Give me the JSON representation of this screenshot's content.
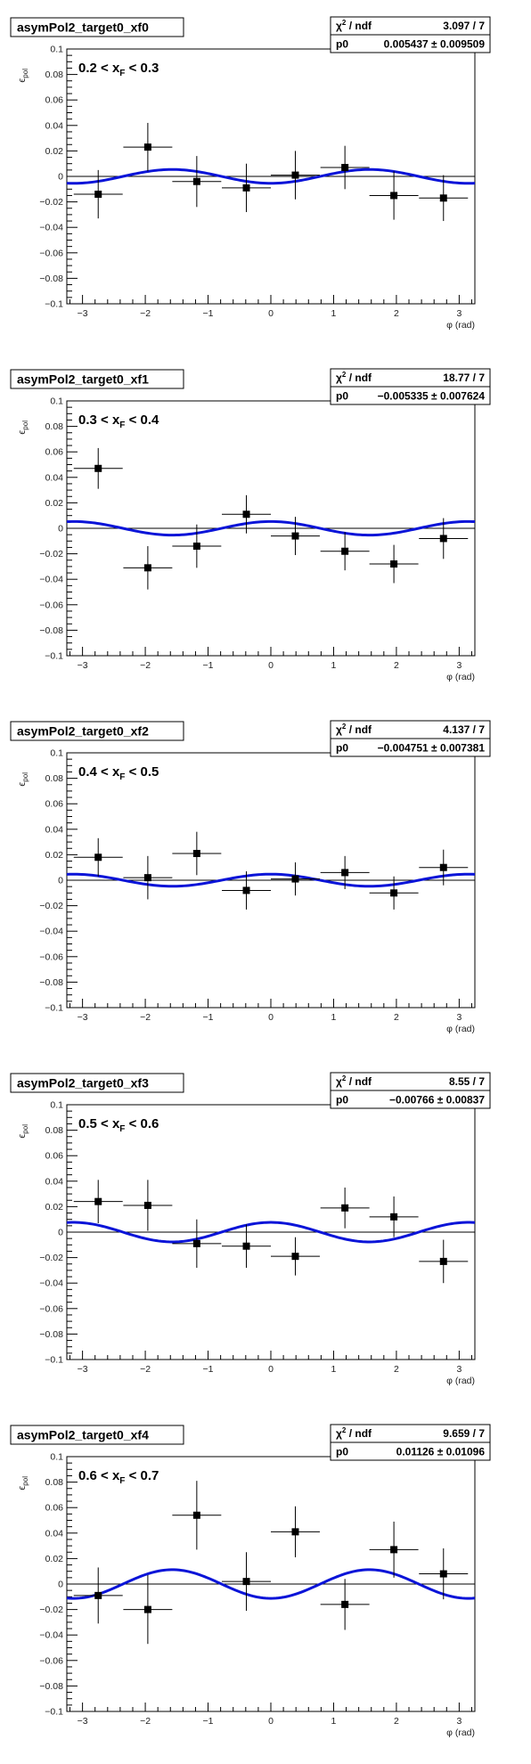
{
  "chart_data": [
    {
      "type": "scatter",
      "title": "asymPol2_target0_xf0",
      "annotation": [
        "0.2 < x",
        "F",
        " < 0.3"
      ],
      "xlabel": "φ (rad)",
      "ylabel": [
        "ϵ",
        "pol"
      ],
      "xlim": [
        -3.25,
        3.25
      ],
      "ylim": [
        -0.1,
        0.1
      ],
      "xticks": [
        "−3",
        "−2",
        "−1",
        "0",
        "1",
        "2",
        "3"
      ],
      "yticks": [
        "−0.1",
        "−0.08",
        "−0.06",
        "−0.04",
        "−0.02",
        "0",
        "0.02",
        "0.04",
        "0.06",
        "0.08",
        "0.1"
      ],
      "stats": {
        "chi2_label": "χ",
        "chi2_sup": "2",
        "ndf_label": " / ndf",
        "chi2_value": "3.097 / 7",
        "p0_label": "p0",
        "p0_value": "0.005437 ± 0.009509"
      },
      "fit": {
        "p0": 0.005437,
        "function": "-p0*cos(2*phi)"
      },
      "points": [
        {
          "x": -2.75,
          "y": -0.014,
          "xerr": 0.39,
          "yerr": 0.019
        },
        {
          "x": -1.96,
          "y": 0.023,
          "xerr": 0.39,
          "yerr": 0.019
        },
        {
          "x": -1.18,
          "y": -0.004,
          "xerr": 0.39,
          "yerr": 0.02
        },
        {
          "x": -0.39,
          "y": -0.009,
          "xerr": 0.39,
          "yerr": 0.019
        },
        {
          "x": 0.39,
          "y": 0.001,
          "xerr": 0.39,
          "yerr": 0.019
        },
        {
          "x": 1.18,
          "y": 0.007,
          "xerr": 0.39,
          "yerr": 0.017
        },
        {
          "x": 1.96,
          "y": -0.015,
          "xerr": 0.39,
          "yerr": 0.019
        },
        {
          "x": 2.75,
          "y": -0.017,
          "xerr": 0.39,
          "yerr": 0.018
        }
      ]
    },
    {
      "type": "scatter",
      "title": "asymPol2_target0_xf1",
      "annotation": [
        "0.3 < x",
        "F",
        " < 0.4"
      ],
      "xlabel": "φ (rad)",
      "ylabel": [
        "ϵ",
        "pol"
      ],
      "xlim": [
        -3.25,
        3.25
      ],
      "ylim": [
        -0.1,
        0.1
      ],
      "xticks": [
        "−3",
        "−2",
        "−1",
        "0",
        "1",
        "2",
        "3"
      ],
      "yticks": [
        "−0.1",
        "−0.08",
        "−0.06",
        "−0.04",
        "−0.02",
        "0",
        "0.02",
        "0.04",
        "0.06",
        "0.08",
        "0.1"
      ],
      "stats": {
        "chi2_label": "χ",
        "chi2_sup": "2",
        "ndf_label": " / ndf",
        "chi2_value": "18.77 / 7",
        "p0_label": "p0",
        "p0_value": "−0.005335 ± 0.007624"
      },
      "fit": {
        "p0": -0.005335,
        "function": "-p0*cos(2*phi)"
      },
      "points": [
        {
          "x": -2.75,
          "y": 0.047,
          "xerr": 0.39,
          "yerr": 0.016
        },
        {
          "x": -1.96,
          "y": -0.031,
          "xerr": 0.39,
          "yerr": 0.017
        },
        {
          "x": -1.18,
          "y": -0.014,
          "xerr": 0.39,
          "yerr": 0.017
        },
        {
          "x": -0.39,
          "y": 0.011,
          "xerr": 0.39,
          "yerr": 0.015
        },
        {
          "x": 0.39,
          "y": -0.006,
          "xerr": 0.39,
          "yerr": 0.015
        },
        {
          "x": 1.18,
          "y": -0.018,
          "xerr": 0.39,
          "yerr": 0.015
        },
        {
          "x": 1.96,
          "y": -0.028,
          "xerr": 0.39,
          "yerr": 0.015
        },
        {
          "x": 2.75,
          "y": -0.008,
          "xerr": 0.39,
          "yerr": 0.016
        }
      ]
    },
    {
      "type": "scatter",
      "title": "asymPol2_target0_xf2",
      "annotation": [
        "0.4 < x",
        "F",
        " < 0.5"
      ],
      "xlabel": "φ (rad)",
      "ylabel": [
        "ϵ",
        "pol"
      ],
      "xlim": [
        -3.25,
        3.25
      ],
      "ylim": [
        -0.1,
        0.1
      ],
      "xticks": [
        "−3",
        "−2",
        "−1",
        "0",
        "1",
        "2",
        "3"
      ],
      "yticks": [
        "−0.1",
        "−0.08",
        "−0.06",
        "−0.04",
        "−0.02",
        "0",
        "0.02",
        "0.04",
        "0.06",
        "0.08",
        "0.1"
      ],
      "stats": {
        "chi2_label": "χ",
        "chi2_sup": "2",
        "ndf_label": " / ndf",
        "chi2_value": "4.137 / 7",
        "p0_label": "p0",
        "p0_value": "−0.004751 ± 0.007381"
      },
      "fit": {
        "p0": -0.004751,
        "function": "-p0*cos(2*phi)"
      },
      "points": [
        {
          "x": -2.75,
          "y": 0.018,
          "xerr": 0.39,
          "yerr": 0.015
        },
        {
          "x": -1.96,
          "y": 0.002,
          "xerr": 0.39,
          "yerr": 0.017
        },
        {
          "x": -1.18,
          "y": 0.021,
          "xerr": 0.39,
          "yerr": 0.017
        },
        {
          "x": -0.39,
          "y": -0.008,
          "xerr": 0.39,
          "yerr": 0.015
        },
        {
          "x": 0.39,
          "y": 0.001,
          "xerr": 0.39,
          "yerr": 0.013
        },
        {
          "x": 1.18,
          "y": 0.006,
          "xerr": 0.39,
          "yerr": 0.013
        },
        {
          "x": 1.96,
          "y": -0.01,
          "xerr": 0.39,
          "yerr": 0.013
        },
        {
          "x": 2.75,
          "y": 0.01,
          "xerr": 0.39,
          "yerr": 0.014
        }
      ]
    },
    {
      "type": "scatter",
      "title": "asymPol2_target0_xf3",
      "annotation": [
        "0.5 < x",
        "F",
        " < 0.6"
      ],
      "xlabel": "φ (rad)",
      "ylabel": [
        "ϵ",
        "pol"
      ],
      "xlim": [
        -3.25,
        3.25
      ],
      "ylim": [
        -0.1,
        0.1
      ],
      "xticks": [
        "−3",
        "−2",
        "−1",
        "0",
        "1",
        "2",
        "3"
      ],
      "yticks": [
        "−0.1",
        "−0.08",
        "−0.06",
        "−0.04",
        "−0.02",
        "0",
        "0.02",
        "0.04",
        "0.06",
        "0.08",
        "0.1"
      ],
      "stats": {
        "chi2_label": "χ",
        "chi2_sup": "2",
        "ndf_label": " / ndf",
        "chi2_value": "8.55 / 7",
        "p0_label": "p0",
        "p0_value": "−0.00766 ± 0.00837"
      },
      "fit": {
        "p0": -0.00766,
        "function": "-p0*cos(2*phi)"
      },
      "points": [
        {
          "x": -2.75,
          "y": 0.024,
          "xerr": 0.39,
          "yerr": 0.017
        },
        {
          "x": -1.96,
          "y": 0.021,
          "xerr": 0.39,
          "yerr": 0.02
        },
        {
          "x": -1.18,
          "y": -0.009,
          "xerr": 0.39,
          "yerr": 0.019
        },
        {
          "x": -0.39,
          "y": -0.011,
          "xerr": 0.39,
          "yerr": 0.017
        },
        {
          "x": 0.39,
          "y": -0.019,
          "xerr": 0.39,
          "yerr": 0.015
        },
        {
          "x": 1.18,
          "y": 0.019,
          "xerr": 0.39,
          "yerr": 0.016
        },
        {
          "x": 1.96,
          "y": 0.012,
          "xerr": 0.39,
          "yerr": 0.016
        },
        {
          "x": 2.75,
          "y": -0.023,
          "xerr": 0.39,
          "yerr": 0.017
        }
      ]
    },
    {
      "type": "scatter",
      "title": "asymPol2_target0_xf4",
      "annotation": [
        "0.6 < x",
        "F",
        " < 0.7"
      ],
      "xlabel": "φ (rad)",
      "ylabel": [
        "ϵ",
        "pol"
      ],
      "xlim": [
        -3.25,
        3.25
      ],
      "ylim": [
        -0.1,
        0.1
      ],
      "xticks": [
        "−3",
        "−2",
        "−1",
        "0",
        "1",
        "2",
        "3"
      ],
      "yticks": [
        "−0.1",
        "−0.08",
        "−0.06",
        "−0.04",
        "−0.02",
        "0",
        "0.02",
        "0.04",
        "0.06",
        "0.08",
        "0.1"
      ],
      "stats": {
        "chi2_label": "χ",
        "chi2_sup": "2",
        "ndf_label": " / ndf",
        "chi2_value": "9.659 / 7",
        "p0_label": "p0",
        "p0_value": "0.01126 ± 0.01096"
      },
      "fit": {
        "p0": 0.01126,
        "function": "-p0*cos(2*phi)"
      },
      "points": [
        {
          "x": -2.75,
          "y": -0.009,
          "xerr": 0.39,
          "yerr": 0.022
        },
        {
          "x": -1.96,
          "y": -0.02,
          "xerr": 0.39,
          "yerr": 0.027
        },
        {
          "x": -1.18,
          "y": 0.054,
          "xerr": 0.39,
          "yerr": 0.027
        },
        {
          "x": -0.39,
          "y": 0.002,
          "xerr": 0.39,
          "yerr": 0.023
        },
        {
          "x": 0.39,
          "y": 0.041,
          "xerr": 0.39,
          "yerr": 0.02
        },
        {
          "x": 1.18,
          "y": -0.016,
          "xerr": 0.39,
          "yerr": 0.02
        },
        {
          "x": 1.96,
          "y": 0.027,
          "xerr": 0.39,
          "yerr": 0.022
        },
        {
          "x": 2.75,
          "y": 0.008,
          "xerr": 0.39,
          "yerr": 0.02
        }
      ]
    }
  ],
  "colors": {
    "fit_line": "#0a14d8",
    "marker": "#000000",
    "frame": "#000000"
  }
}
